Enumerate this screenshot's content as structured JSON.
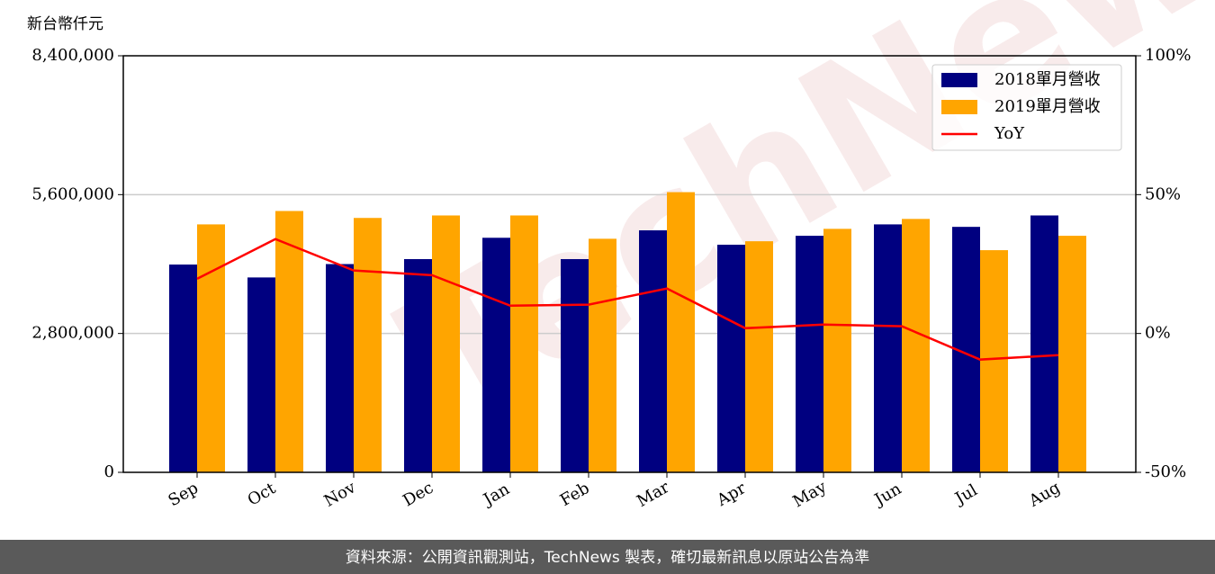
{
  "chart_data": {
    "type": "bar_line",
    "y_label": "新台幣仟元",
    "categories": [
      "Sep",
      "Oct",
      "Nov",
      "Dec",
      "Jan",
      "Feb",
      "Mar",
      "Apr",
      "May",
      "Jun",
      "Jul",
      "Aug"
    ],
    "series": [
      {
        "name": "2018單月營收",
        "color": "#000080",
        "type": "bar",
        "values": [
          4190000,
          3930000,
          4200000,
          4300000,
          4730000,
          4300000,
          4880000,
          4590000,
          4770000,
          5000000,
          4950000,
          5180000
        ]
      },
      {
        "name": "2019單月營收",
        "color": "#ffa500",
        "type": "bar",
        "values": [
          5000000,
          5270000,
          5130000,
          5180000,
          5180000,
          4710000,
          5650000,
          4660000,
          4910000,
          5110000,
          4480000,
          4770000
        ]
      },
      {
        "name": "YoY",
        "color": "#ff0000",
        "type": "line",
        "axis": "y2",
        "values": [
          19.7,
          34,
          22.7,
          21,
          10,
          10.4,
          16.2,
          1.9,
          3.2,
          2.6,
          -9.4,
          -7.8
        ]
      }
    ],
    "ylim": [
      0,
      8400000
    ],
    "yticks": [
      {
        "value": 0,
        "label": "0"
      },
      {
        "value": 2800000,
        "label": "2,800,000"
      },
      {
        "value": 5600000,
        "label": "5,600,000"
      },
      {
        "value": 8400000,
        "label": "8,400,000"
      }
    ],
    "y2lim": [
      -50,
      100
    ],
    "y2ticks": [
      {
        "value": -50,
        "label": "-50%"
      },
      {
        "value": 0,
        "label": "0%"
      },
      {
        "value": 50,
        "label": "50%"
      },
      {
        "value": 100,
        "label": "100%"
      }
    ],
    "grid": true,
    "legend": "upper right",
    "watermark": "TechNews",
    "footer": "資料來源：公開資訊觀測站，TechNews 製表，確切最新訊息以原站公告為準"
  }
}
